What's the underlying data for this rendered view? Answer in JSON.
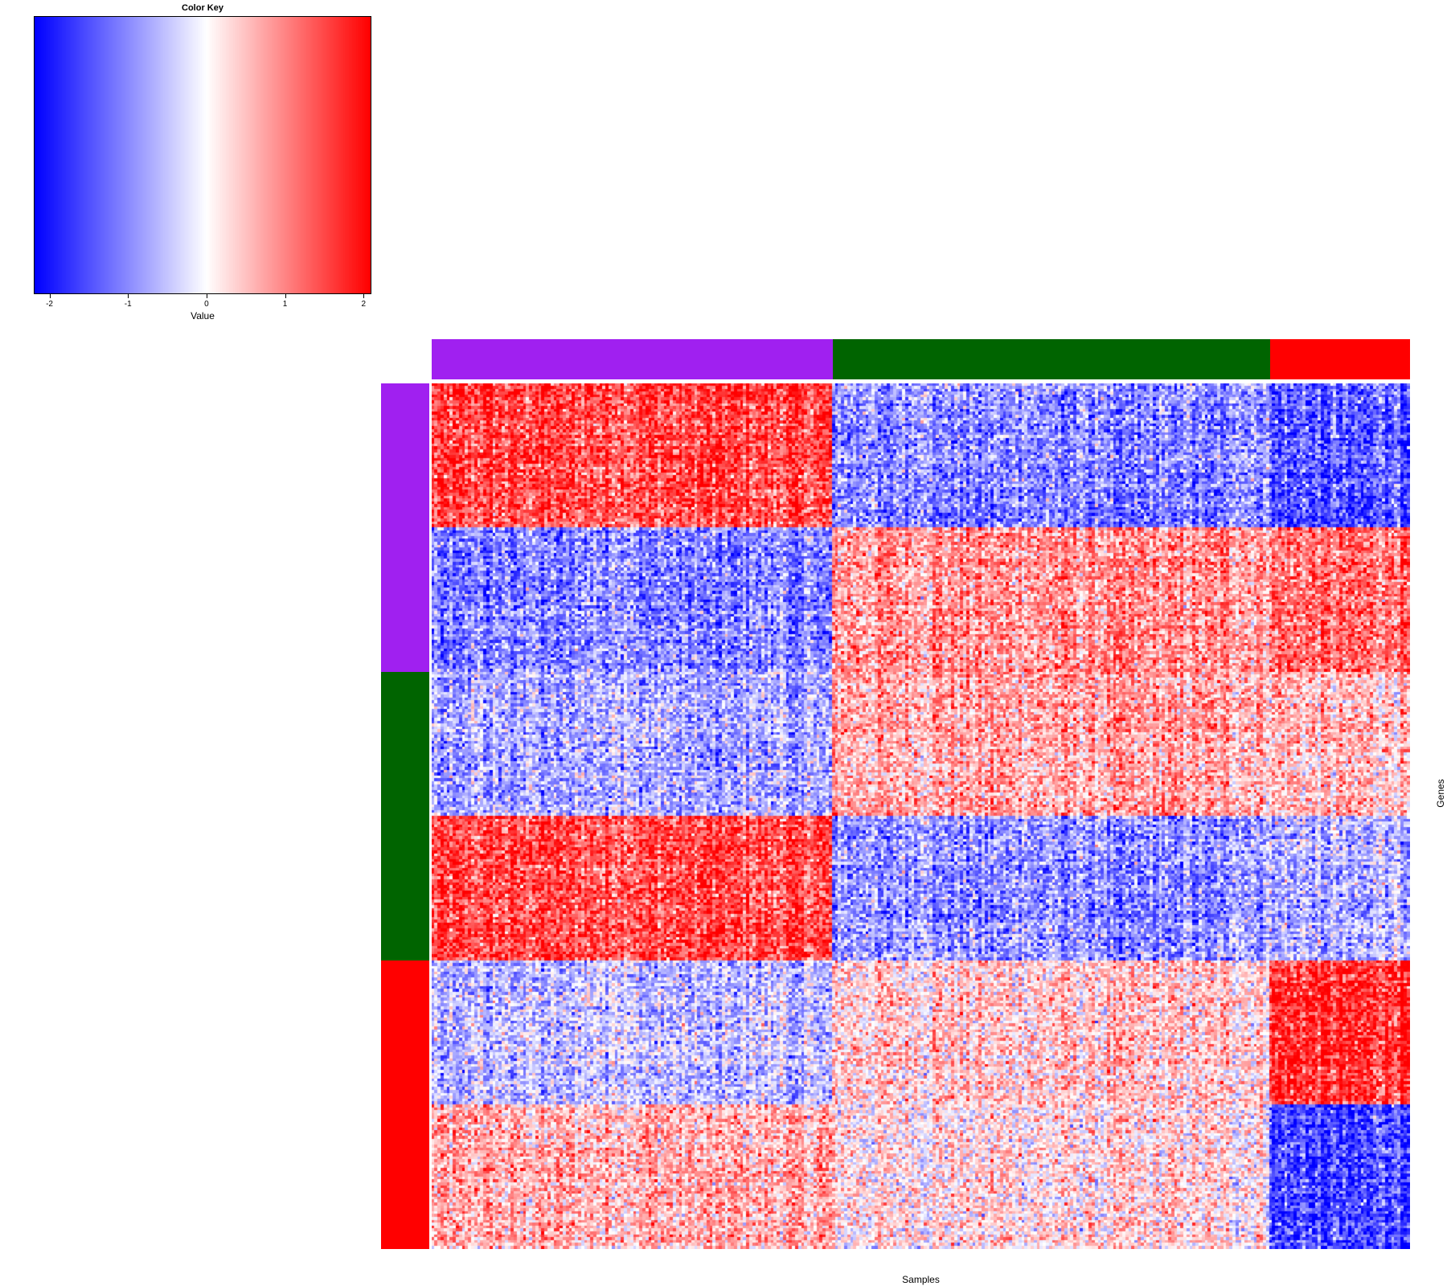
{
  "colors": {
    "low": "#0000FF",
    "mid": "#FFFFFF",
    "high": "#FF0000",
    "purple": "#A020F0",
    "green": "#006400",
    "red": "#FF0000"
  },
  "chart_data": {
    "type": "heatmap",
    "key": {
      "title": "Color Key",
      "xlabel": "Value",
      "range": [
        -2.2,
        2.1
      ],
      "ticks": [
        -2,
        -1,
        0,
        1,
        2
      ],
      "tick_labels": [
        "-2",
        "-1",
        "0",
        "1",
        "2"
      ],
      "colormap": [
        "#0000FF",
        "#FFFFFF",
        "#FF0000"
      ]
    },
    "xlabel": "Samples",
    "ylabel": "Genes",
    "column_groups": [
      {
        "name": "purple",
        "color": "#A020F0",
        "fraction": 0.41
      },
      {
        "name": "green",
        "color": "#006400",
        "fraction": 0.447
      },
      {
        "name": "red",
        "color": "#FF0000",
        "fraction": 0.143
      }
    ],
    "row_groups": [
      {
        "name": "purple",
        "color": "#A020F0",
        "fraction": 0.333
      },
      {
        "name": "green",
        "color": "#006400",
        "fraction": 0.334
      },
      {
        "name": "red",
        "color": "#FF0000",
        "fraction": 0.333
      }
    ],
    "row_blocks": [
      {
        "fraction": 0.167,
        "mean_by_column_group": [
          1.5,
          -1.0,
          -1.4
        ]
      },
      {
        "fraction": 0.166,
        "mean_by_column_group": [
          -1.0,
          0.9,
          1.2
        ]
      },
      {
        "fraction": 0.167,
        "mean_by_column_group": [
          -0.7,
          0.7,
          0.5
        ]
      },
      {
        "fraction": 0.167,
        "mean_by_column_group": [
          1.5,
          -0.9,
          -0.6
        ]
      },
      {
        "fraction": 0.167,
        "mean_by_column_group": [
          -0.5,
          0.4,
          1.7
        ]
      },
      {
        "fraction": 0.166,
        "mean_by_column_group": [
          0.6,
          0.2,
          -1.6
        ]
      }
    ],
    "n_rows": 300,
    "n_columns": 320
  }
}
